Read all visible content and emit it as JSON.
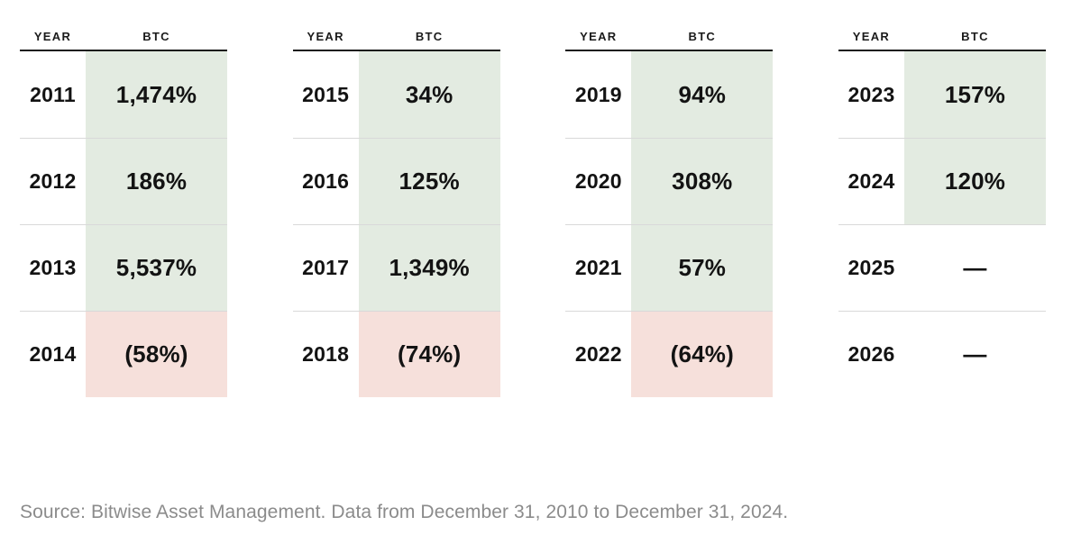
{
  "chart_data": {
    "type": "table",
    "title": "",
    "columns": [
      "YEAR",
      "BTC"
    ],
    "rows": [
      [
        "2011",
        "1,474%"
      ],
      [
        "2012",
        "186%"
      ],
      [
        "2013",
        "5,537%"
      ],
      [
        "2014",
        "(58%)"
      ],
      [
        "2015",
        "34%"
      ],
      [
        "2016",
        "125%"
      ],
      [
        "2017",
        "1,349%"
      ],
      [
        "2018",
        "(74%)"
      ],
      [
        "2019",
        "94%"
      ],
      [
        "2020",
        "308%"
      ],
      [
        "2021",
        "57%"
      ],
      [
        "2022",
        "(64%)"
      ],
      [
        "2023",
        "157%"
      ],
      [
        "2024",
        "120%"
      ],
      [
        "2025",
        "—"
      ],
      [
        "2026",
        "—"
      ]
    ],
    "layout": "four side-by-side two-column panels of four rows each",
    "legend": "green cell = positive annual return, pink cell = negative (parenthesized) return, em dash = no data"
  },
  "columns": {
    "year": "YEAR",
    "value": "BTC"
  },
  "tables": [
    {
      "rows": [
        {
          "year": "2011",
          "value": "1,474%",
          "type": "positive"
        },
        {
          "year": "2012",
          "value": "186%",
          "type": "positive"
        },
        {
          "year": "2013",
          "value": "5,537%",
          "type": "positive"
        },
        {
          "year": "2014",
          "value": "(58%)",
          "type": "negative"
        }
      ]
    },
    {
      "rows": [
        {
          "year": "2015",
          "value": "34%",
          "type": "positive"
        },
        {
          "year": "2016",
          "value": "125%",
          "type": "positive"
        },
        {
          "year": "2017",
          "value": "1,349%",
          "type": "positive"
        },
        {
          "year": "2018",
          "value": "(74%)",
          "type": "negative"
        }
      ]
    },
    {
      "rows": [
        {
          "year": "2019",
          "value": "94%",
          "type": "positive"
        },
        {
          "year": "2020",
          "value": "308%",
          "type": "positive"
        },
        {
          "year": "2021",
          "value": "57%",
          "type": "positive"
        },
        {
          "year": "2022",
          "value": "(64%)",
          "type": "negative"
        }
      ]
    },
    {
      "rows": [
        {
          "year": "2023",
          "value": "157%",
          "type": "positive"
        },
        {
          "year": "2024",
          "value": "120%",
          "type": "positive"
        },
        {
          "year": "2025",
          "value": "—",
          "type": "none"
        },
        {
          "year": "2026",
          "value": "—",
          "type": "none"
        }
      ]
    }
  ],
  "source_note": "Source: Bitwise Asset Management. Data from December 31, 2010 to December 31, 2024.",
  "colors": {
    "positive_bg": "#e3ebe1",
    "negative_bg": "#f6e0db",
    "header_rule": "#1b1b1b",
    "row_divider": "#d9d9d9",
    "text": "#131313",
    "source_text": "#8b8b8b",
    "background": "#ffffff"
  }
}
